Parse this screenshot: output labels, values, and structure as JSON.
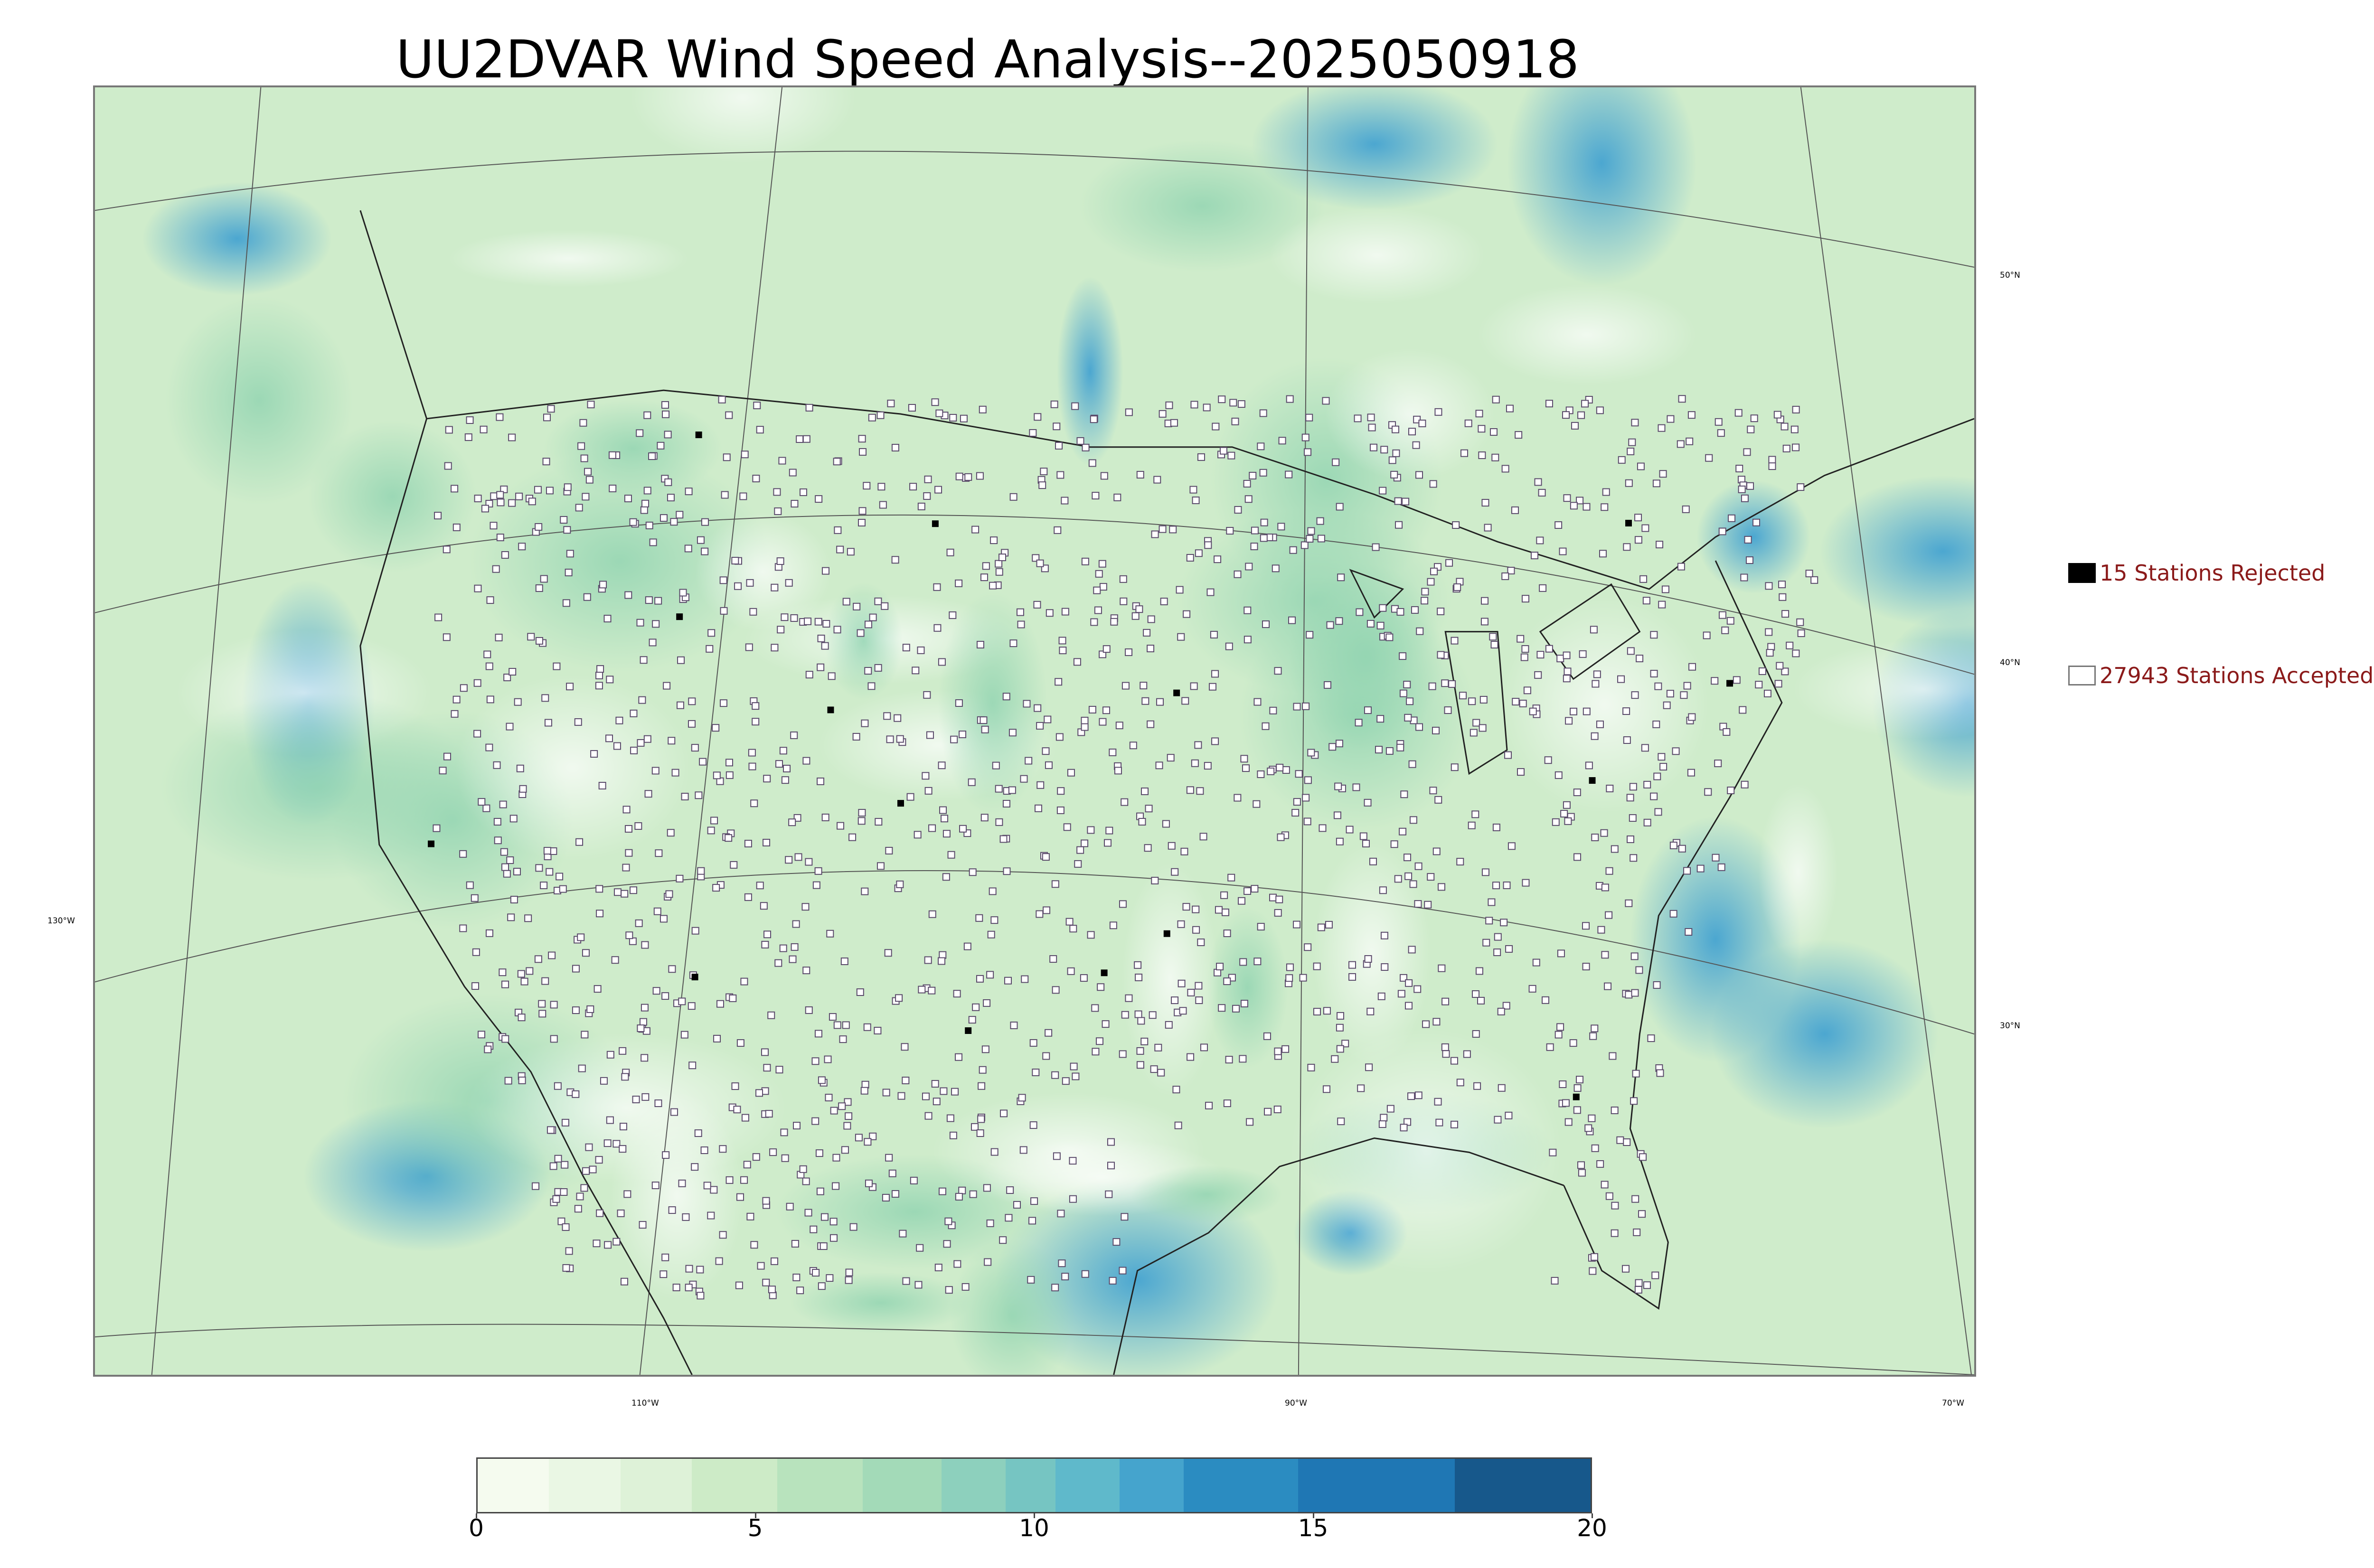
{
  "title": "UU2DVAR Wind Speed Analysis--2025050918",
  "map": {
    "lat_labels": [
      "50°N",
      "40°N",
      "30°N"
    ],
    "lon_labels": [
      "130°W",
      "110°W",
      "90°W",
      "70°W"
    ]
  },
  "legend": {
    "rejected": {
      "label": "15 Stations Rejected",
      "swatch_color": "#000000"
    },
    "accepted": {
      "label": "27943 Stations Accepted",
      "swatch_color": "#ffffff"
    }
  },
  "colorbar": {
    "ticks": [
      "0",
      "5",
      "10",
      "15",
      "20"
    ],
    "range": [
      0,
      20
    ],
    "colors": [
      "#f5fbef",
      "#eaf7e4",
      "#def2d8",
      "#cdebc7",
      "#b8e3bd",
      "#a3dab8",
      "#8dd0bd",
      "#76c5c2",
      "#5fb9cb",
      "#45a4cd",
      "#2b8cc1",
      "#1f77b4",
      "#17588b"
    ]
  },
  "chart_data": {
    "type": "heatmap",
    "title": "UU2DVAR Wind Speed Analysis--2025050918",
    "colorbar_ticks": [
      0,
      5,
      10,
      15,
      20
    ],
    "colorbar_range": [
      0,
      20
    ],
    "stations_rejected": 15,
    "stations_accepted": 27943
  }
}
